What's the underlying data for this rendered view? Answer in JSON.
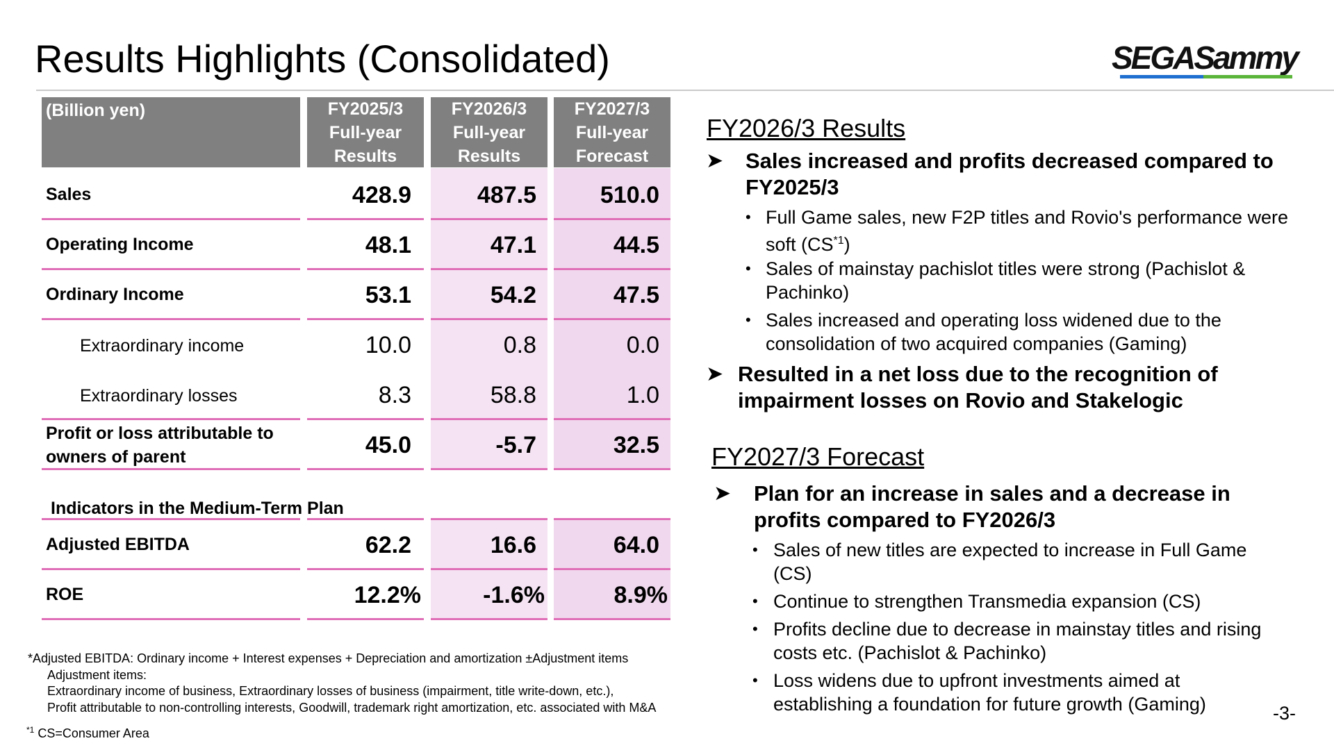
{
  "header": {
    "title": "Results Highlights (Consolidated)",
    "logo_text": "SEGASammy"
  },
  "table": {
    "unit_label": "(Billion yen)",
    "columns": [
      {
        "line1": "FY2025/3",
        "line2": "Full-year",
        "line3": "Results"
      },
      {
        "line1": "FY2026/3",
        "line2": "Full-year",
        "line3": "Results"
      },
      {
        "line1": "FY2027/3",
        "line2": "Full-year",
        "line3": "Forecast"
      }
    ],
    "rows": [
      {
        "label": "Sales",
        "values": [
          "428.9",
          "487.5",
          "510.0"
        ]
      },
      {
        "label": "Operating Income",
        "values": [
          "48.1",
          "47.1",
          "44.5"
        ]
      },
      {
        "label": "Ordinary Income",
        "values": [
          "53.1",
          "54.2",
          "47.5"
        ]
      },
      {
        "label": "Extraordinary income",
        "values": [
          "10.0",
          "0.8",
          "0.0"
        ]
      },
      {
        "label": "Extraordinary losses",
        "values": [
          "8.3",
          "58.8",
          "1.0"
        ]
      },
      {
        "label_line1": "Profit or loss attributable to",
        "label_line2": "owners of parent",
        "values": [
          "45.0",
          "-5.7",
          "32.5"
        ]
      }
    ],
    "section_label": "Indicators in the Medium-Term Plan",
    "indicator_rows": [
      {
        "label": "Adjusted EBITDA",
        "values": [
          "62.2",
          "16.6",
          "64.0"
        ]
      },
      {
        "label": "ROE",
        "values": [
          "12.2%",
          "-1.6%",
          "8.9%"
        ]
      }
    ]
  },
  "footnotes": {
    "line1": "*Adjusted EBITDA: Ordinary income + Interest expenses + Depreciation and amortization ±Adjustment items",
    "line2": "Adjustment items:",
    "line3": "Extraordinary income of business, Extraordinary losses of business (impairment, title write-down, etc.),",
    "line4": "Profit attributable to non-controlling interests, Goodwill, trademark right amortization, etc. associated with M&A",
    "cs_mark": "*1",
    "cs_text": "CS=Consumer Area"
  },
  "results": {
    "heading": "FY2026/3 Results",
    "point1": "Sales increased and profits decreased compared to FY2025/3",
    "bullets": [
      {
        "text_a": "Full Game sales, new F2P titles and Rovio's performance were soft (CS",
        "sup": "*1",
        "text_b": ")"
      },
      {
        "text": "Sales of mainstay pachislot titles were strong (Pachislot & Pachinko)"
      },
      {
        "text": "Sales increased and operating loss widened due to the consolidation of two acquired companies (Gaming)"
      }
    ],
    "point2": "Resulted in a net loss due to the recognition of impairment losses on Rovio and Stakelogic"
  },
  "forecast": {
    "heading": "FY2027/3 Forecast",
    "point1": "Plan for an increase in sales and a decrease in profits compared to FY2026/3",
    "bullets": [
      "Sales of new titles are expected to increase in Full Game (CS)",
      "Continue to strengthen Transmedia expansion (CS)",
      "Profits decline due to decrease in mainstay titles and rising costs etc. (Pachislot & Pachinko)",
      "Loss widens due to upfront investments aimed at establishing a foundation for future growth (Gaming)"
    ]
  },
  "page_number": "-3-",
  "colors": {
    "header_gray": "#808080",
    "row_line_pink": "#e06fb7",
    "column_tint": "#f5e3f3",
    "logo_blue": "#1f6fd0",
    "logo_green": "#5bb53a"
  }
}
